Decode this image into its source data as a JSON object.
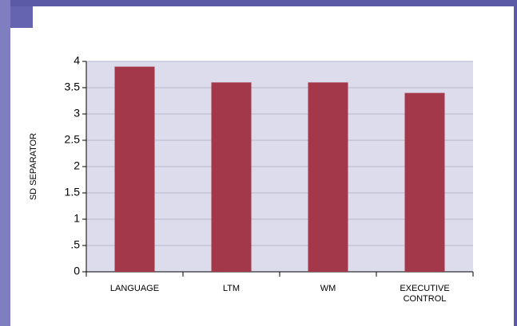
{
  "chart_data": {
    "type": "bar",
    "y_label": "SD SEPARATOR",
    "categories": [
      "LANGUAGE",
      "LTM",
      "WM",
      "EXECUTIVE CONTROL"
    ],
    "values": [
      3.9,
      3.6,
      3.6,
      3.4
    ],
    "color": "#a3384a",
    "ylim": [
      0,
      4
    ],
    "yticks": [
      0,
      {
        "value": 0.5,
        "label": ".5"
      },
      1,
      1.5,
      2,
      2.5,
      3,
      3.5,
      4
    ],
    "grid": true
  }
}
